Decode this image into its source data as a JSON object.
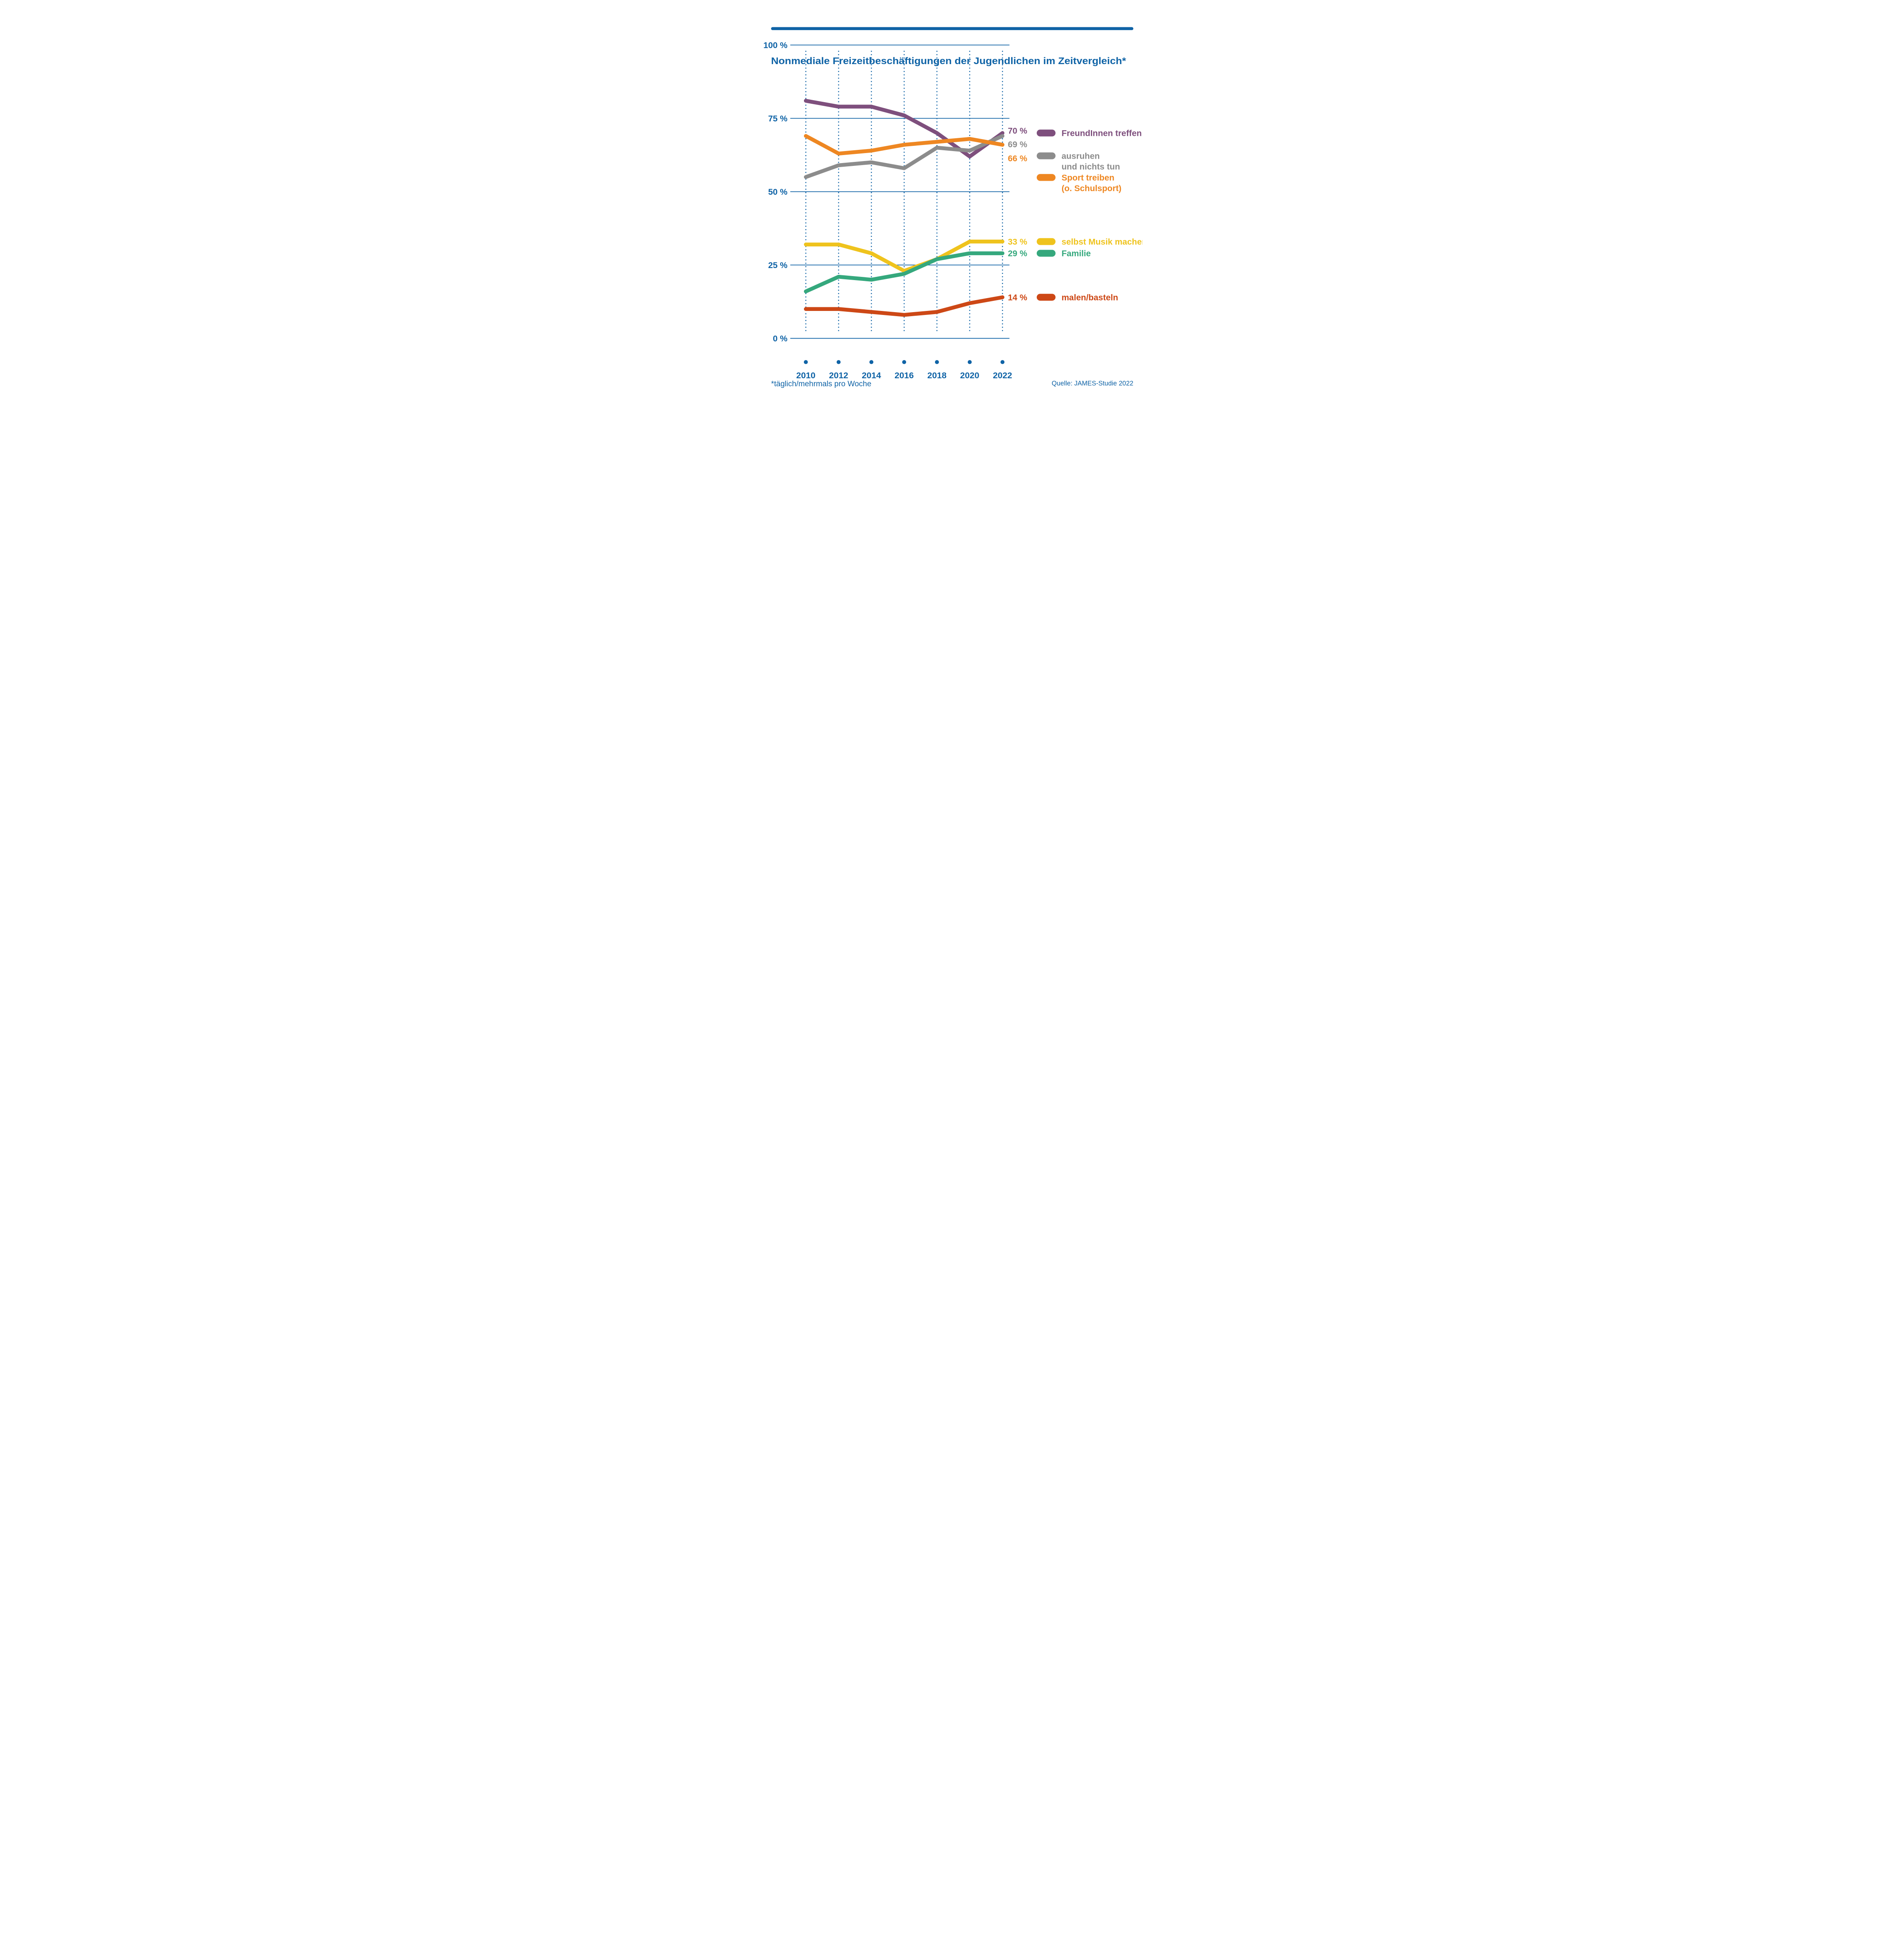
{
  "title": "Nonmediale Freizeitbeschäftigungen der Jugendlichen im Zeitvergleich*",
  "footer": {
    "footnote": "*täglich/mehrmals pro Woche",
    "source": "Quelle: JAMES-Studie 2022"
  },
  "colors": {
    "axis_blue": "#0F63A6",
    "background": "#FFFFFF"
  },
  "chart_data": {
    "type": "line",
    "title": "Nonmediale Freizeitbeschäftigungen der Jugendlichen im Zeitvergleich*",
    "xlabel": "",
    "ylabel": "",
    "x": [
      "2010",
      "2012",
      "2014",
      "2016",
      "2018",
      "2020",
      "2022"
    ],
    "ylim": [
      0,
      100
    ],
    "y_ticks": [
      "100 %",
      "75 %",
      "50 %",
      "25 %",
      "0 %"
    ],
    "grid": "horizontal solid blue, vertical dotted blue per year",
    "legend_position": "right",
    "series": [
      {
        "name": "FreundInnen treffen",
        "name_lines": [
          "FreundInnen treffen"
        ],
        "color": "#7E4F7D",
        "values": [
          81,
          79,
          79,
          76,
          70,
          62,
          70
        ],
        "end_label": "70 %"
      },
      {
        "name": "ausruhen und nichts tun",
        "name_lines": [
          "ausruhen",
          "und nichts tun"
        ],
        "color": "#8C8C8C",
        "values": [
          55,
          59,
          60,
          58,
          65,
          64,
          69
        ],
        "end_label": "69 %"
      },
      {
        "name": "Sport treiben (o. Schulsport)",
        "name_lines": [
          "Sport treiben",
          "(o. Schulsport)"
        ],
        "color": "#EE8722",
        "values": [
          69,
          63,
          64,
          66,
          67,
          68,
          66
        ],
        "end_label": "66 %"
      },
      {
        "name": "selbst Musik machen",
        "name_lines": [
          "selbst Musik machen"
        ],
        "color": "#EFC31D",
        "values": [
          32,
          32,
          29,
          23,
          27,
          33,
          33
        ],
        "end_label": "33 %"
      },
      {
        "name": "Familie",
        "name_lines": [
          "Familie"
        ],
        "color": "#35A87D",
        "values": [
          16,
          21,
          20,
          22,
          27,
          29,
          29
        ],
        "end_label": "29 %"
      },
      {
        "name": "malen/basteln",
        "name_lines": [
          "malen/basteln"
        ],
        "color": "#CD4816",
        "values": [
          10,
          10,
          9,
          8,
          9,
          12,
          14
        ],
        "end_label": "14 %"
      }
    ]
  }
}
